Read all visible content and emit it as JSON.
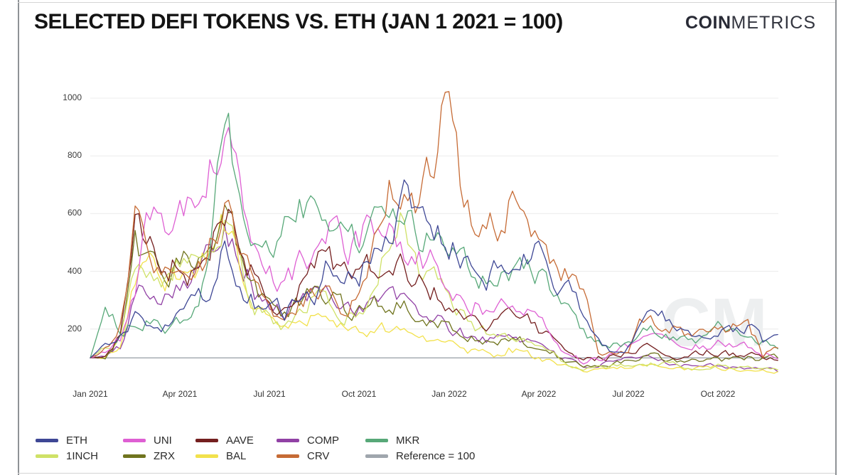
{
  "header": {
    "title": "SELECTED DEFI TOKENS VS. ETH (JAN 1 2021 = 100)",
    "logo_bold": "COIN",
    "logo_light": "METRICS"
  },
  "watermark": "CM",
  "chart_data": {
    "type": "line",
    "title": "SELECTED DEFI TOKENS VS. ETH (JAN 1 2021 = 100)",
    "x_axis": {
      "unit": "months since Jan 1 2021",
      "tick_positions_months": [
        0,
        3,
        6,
        9,
        12,
        15,
        18,
        21
      ],
      "tick_labels": [
        "Jan 2021",
        "Apr 2021",
        "Jul 2021",
        "Oct 2021",
        "Jan 2022",
        "Apr 2022",
        "Jul 2022",
        "Oct 2022"
      ]
    },
    "y_axis": {
      "ticks": [
        200,
        400,
        600,
        800,
        1000
      ],
      "range": [
        0,
        1095
      ],
      "gridlines": true,
      "grid_color": "#ececec"
    },
    "sample_step_months": 0.5,
    "series": [
      {
        "name": "ETH",
        "color": "#3e4795",
        "values": [
          100,
          140,
          180,
          230,
          210,
          200,
          240,
          290,
          330,
          520,
          370,
          290,
          285,
          260,
          310,
          330,
          430,
          400,
          390,
          480,
          570,
          640,
          600,
          540,
          500,
          420,
          360,
          390,
          400,
          440,
          470,
          400,
          330,
          240,
          150,
          130,
          150,
          220,
          250,
          230,
          190,
          190,
          195,
          185,
          215,
          155,
          160
        ]
      },
      {
        "name": "UNI",
        "color": "#de5fd3",
        "values": [
          100,
          115,
          160,
          350,
          600,
          550,
          620,
          700,
          780,
          880,
          700,
          480,
          400,
          340,
          420,
          480,
          540,
          470,
          500,
          560,
          580,
          500,
          450,
          420,
          340,
          300,
          280,
          255,
          300,
          275,
          215,
          170,
          110,
          85,
          100,
          105,
          140,
          175,
          160,
          140,
          130,
          140,
          150,
          140,
          130,
          115,
          105
        ]
      },
      {
        "name": "AAVE",
        "color": "#741f1f",
        "values": [
          100,
          110,
          180,
          560,
          480,
          420,
          430,
          390,
          480,
          600,
          520,
          380,
          300,
          260,
          330,
          430,
          440,
          380,
          360,
          420,
          440,
          400,
          360,
          340,
          300,
          250,
          230,
          230,
          260,
          240,
          200,
          170,
          110,
          90,
          100,
          105,
          120,
          140,
          130,
          120,
          110,
          115,
          125,
          115,
          110,
          95,
          100
        ]
      },
      {
        "name": "COMP",
        "color": "#9141a5",
        "values": [
          100,
          105,
          130,
          320,
          350,
          330,
          380,
          400,
          450,
          600,
          480,
          330,
          280,
          250,
          300,
          330,
          320,
          290,
          280,
          300,
          320,
          290,
          260,
          240,
          200,
          180,
          170,
          160,
          180,
          170,
          150,
          130,
          90,
          70,
          75,
          80,
          90,
          100,
          95,
          85,
          75,
          78,
          80,
          70,
          65,
          60,
          55
        ]
      },
      {
        "name": "MKR",
        "color": "#57a878",
        "values": [
          100,
          270,
          195,
          220,
          230,
          215,
          225,
          280,
          420,
          1040,
          700,
          560,
          450,
          560,
          600,
          660,
          620,
          560,
          500,
          560,
          520,
          570,
          540,
          480,
          470,
          420,
          360,
          340,
          380,
          400,
          380,
          330,
          260,
          190,
          150,
          140,
          160,
          185,
          190,
          175,
          160,
          170,
          195,
          180,
          170,
          155,
          150
        ]
      },
      {
        "name": "1INCH",
        "color": "#cfe167",
        "values": [
          100,
          140,
          180,
          420,
          380,
          360,
          440,
          400,
          430,
          620,
          420,
          300,
          250,
          220,
          280,
          300,
          290,
          260,
          250,
          300,
          520,
          580,
          420,
          380,
          300,
          240,
          200,
          170,
          180,
          160,
          140,
          120,
          80,
          60,
          65,
          70,
          75,
          85,
          80,
          75,
          70,
          72,
          75,
          68,
          65,
          62,
          58
        ]
      },
      {
        "name": "ZRX",
        "color": "#70741e",
        "values": [
          100,
          110,
          170,
          480,
          430,
          380,
          420,
          480,
          560,
          600,
          480,
          340,
          280,
          240,
          300,
          330,
          320,
          280,
          260,
          290,
          300,
          280,
          250,
          230,
          200,
          170,
          160,
          150,
          170,
          160,
          140,
          120,
          85,
          70,
          75,
          80,
          90,
          110,
          100,
          90,
          85,
          88,
          92,
          95,
          100,
          98,
          95
        ]
      },
      {
        "name": "BAL",
        "color": "#f2e14c",
        "values": [
          100,
          105,
          140,
          380,
          420,
          360,
          400,
          380,
          480,
          560,
          420,
          280,
          230,
          190,
          230,
          250,
          240,
          210,
          190,
          210,
          200,
          180,
          170,
          160,
          140,
          120,
          115,
          110,
          130,
          120,
          100,
          90,
          65,
          55,
          60,
          62,
          68,
          75,
          72,
          68,
          62,
          64,
          66,
          60,
          58,
          55,
          52
        ]
      },
      {
        "name": "CRV",
        "color": "#c66b35",
        "values": [
          100,
          130,
          200,
          560,
          480,
          400,
          420,
          380,
          480,
          600,
          500,
          320,
          260,
          230,
          300,
          330,
          310,
          280,
          300,
          500,
          750,
          620,
          600,
          800,
          1030,
          640,
          480,
          560,
          620,
          560,
          480,
          400,
          380,
          320,
          130,
          110,
          140,
          230,
          220,
          200,
          170,
          180,
          190,
          210,
          230,
          100,
          150
        ]
      }
    ],
    "reference_line": {
      "label": "Reference = 100",
      "value": 100,
      "color": "#9fa6ad"
    },
    "legend": {
      "position": "bottom-left",
      "rows": 2,
      "items": [
        {
          "label": "ETH",
          "color": "#3e4795"
        },
        {
          "label": "UNI",
          "color": "#de5fd3"
        },
        {
          "label": "AAVE",
          "color": "#741f1f"
        },
        {
          "label": "COMP",
          "color": "#9141a5"
        },
        {
          "label": "MKR",
          "color": "#57a878"
        },
        {
          "label": "1INCH",
          "color": "#cfe167"
        },
        {
          "label": "ZRX",
          "color": "#70741e"
        },
        {
          "label": "BAL",
          "color": "#f2e14c"
        },
        {
          "label": "CRV",
          "color": "#c66b35"
        },
        {
          "label": "Reference = 100",
          "color": "#9fa6ad"
        }
      ]
    }
  }
}
